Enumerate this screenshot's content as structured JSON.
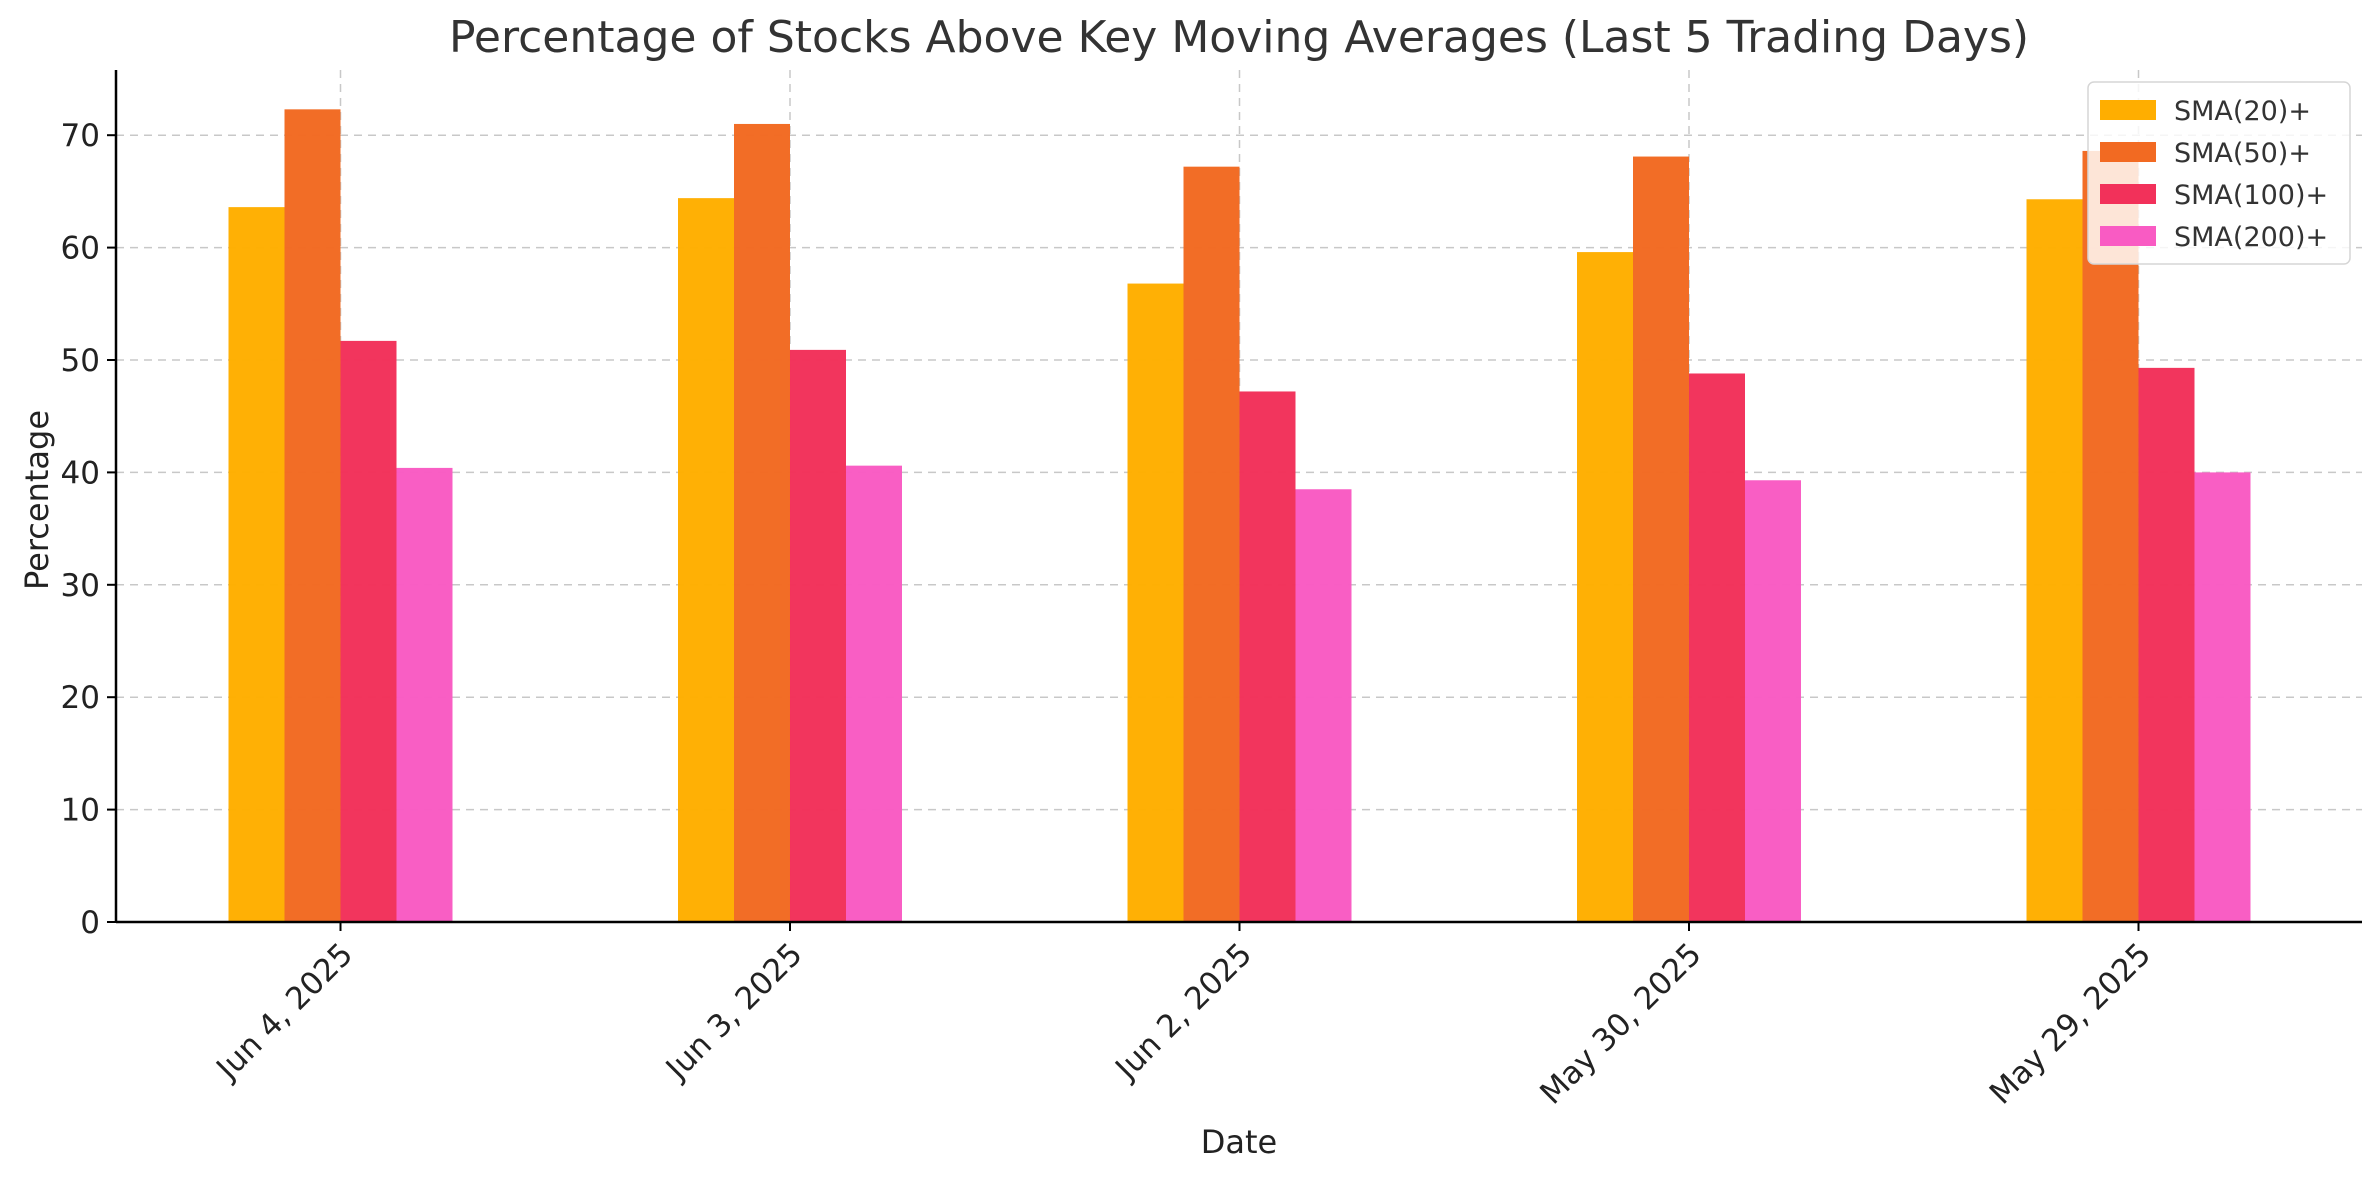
{
  "chart_data": {
    "type": "bar",
    "title": "Percentage of Stocks Above Key Moving Averages (Last 5 Trading Days)",
    "xlabel": "Date",
    "ylabel": "Percentage",
    "categories": [
      "Jun 4, 2025",
      "Jun 3, 2025",
      "Jun 2, 2025",
      "May 30, 2025",
      "May 29, 2025"
    ],
    "series": [
      {
        "name": "SMA(20)+",
        "color": "#FFAE00",
        "values": [
          63.6,
          64.4,
          56.8,
          59.6,
          64.3
        ]
      },
      {
        "name": "SMA(50)+",
        "color": "#F26A22",
        "values": [
          72.3,
          71.0,
          67.2,
          68.1,
          68.6
        ]
      },
      {
        "name": "SMA(100)+",
        "color": "#F2315A",
        "values": [
          51.7,
          50.9,
          47.2,
          48.8,
          49.3
        ]
      },
      {
        "name": "SMA(200)+",
        "color": "#F95BC3",
        "values": [
          40.4,
          40.6,
          38.5,
          39.3,
          40.0
        ]
      }
    ],
    "ylim": [
      0,
      75.8
    ],
    "yticks": [
      0,
      10,
      20,
      30,
      40,
      50,
      60,
      70
    ],
    "grid": true,
    "legend_position": "top-right"
  }
}
